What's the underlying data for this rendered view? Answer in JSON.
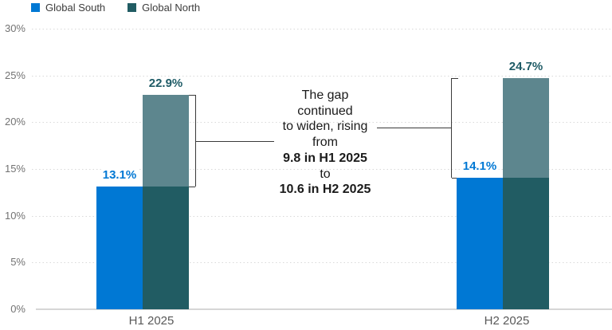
{
  "legend": {
    "items": [
      {
        "label": "Global South",
        "color": "#0078d4"
      },
      {
        "label": "Global North",
        "color": "#215c63"
      }
    ]
  },
  "chart_data": {
    "type": "bar",
    "categories": [
      "H1 2025",
      "H2 2025"
    ],
    "series": [
      {
        "name": "Global South",
        "values": [
          13.1,
          14.1
        ],
        "labels": [
          "13.1%",
          "14.1%"
        ],
        "color": "#0078d4",
        "label_color": "#0078d4"
      },
      {
        "name": "Global North",
        "values": [
          22.9,
          24.7
        ],
        "labels": [
          "22.9%",
          "24.7%"
        ],
        "color": "#215c63",
        "gap_segment_color": "#5d868e",
        "label_color": "#1e5b66"
      }
    ],
    "ylim": [
      0,
      30
    ],
    "ytick_step": 5,
    "ytick_suffix": "%",
    "grid": "horizontal-dotted",
    "legend_position": "top-left",
    "gap_values": [
      9.8,
      10.6
    ],
    "annotation": {
      "lines": [
        {
          "text": "The gap",
          "bold": false
        },
        {
          "text": "continued",
          "bold": false
        },
        {
          "text": "to widen, rising",
          "bold": false
        },
        {
          "text": "from",
          "bold": false
        },
        {
          "text": "9.8 in H1 2025",
          "bold": true
        },
        {
          "text": "to",
          "bold": false
        },
        {
          "text": "10.6 in H2 2025",
          "bold": true
        }
      ]
    }
  },
  "colors": {
    "grid": "#d9d9d9",
    "axis_line": "#d6d6d6",
    "tick_text": "#737373",
    "category_text": "#595959",
    "annotation_text": "#1a1a1a",
    "bracket": "#3a3a3a"
  }
}
